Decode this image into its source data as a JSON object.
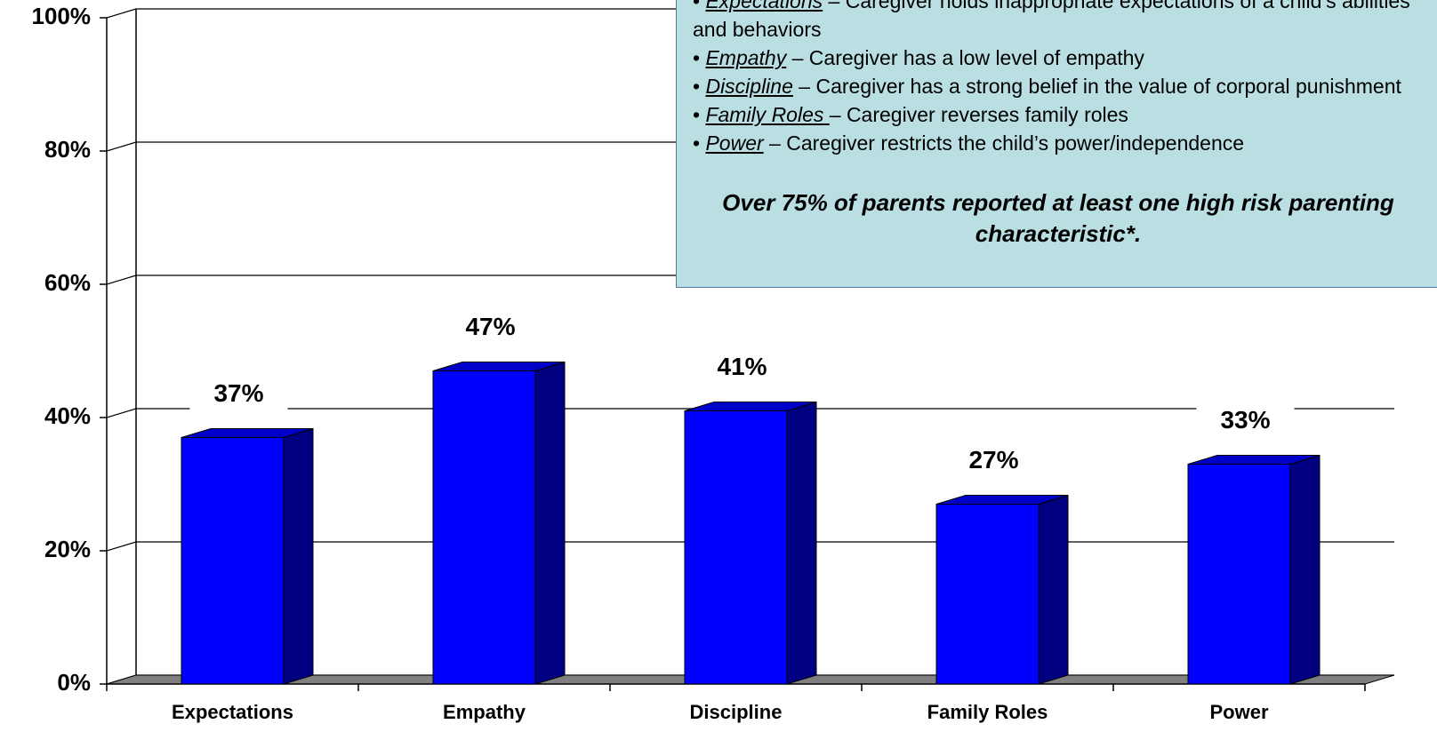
{
  "chart_data": {
    "type": "bar3d",
    "categories": [
      "Expectations",
      "Empathy",
      "Discipline",
      "Family Roles",
      "Power"
    ],
    "values": [
      37,
      47,
      41,
      27,
      33
    ],
    "value_labels": [
      "37%",
      "47%",
      "41%",
      "27%",
      "33%"
    ],
    "color": "#0000ff",
    "ylim": [
      0,
      100
    ],
    "yticks": [
      {
        "value": 0,
        "label": "0%"
      },
      {
        "value": 20,
        "label": "20%"
      },
      {
        "value": 40,
        "label": "40%"
      },
      {
        "value": 60,
        "label": "60%"
      },
      {
        "value": 80,
        "label": "80%"
      },
      {
        "value": 100,
        "label": "100%"
      }
    ],
    "grid": true,
    "annotation": {
      "bullets": [
        {
          "term": "Expectations",
          "text": " – Caregiver holds inappropriate expectations of a child’s abilities and behaviors"
        },
        {
          "term": "Empathy",
          "text": " – Caregiver has a low level of empathy"
        },
        {
          "term": "Discipline",
          "text": " – Caregiver has a strong belief in the  value of corporal punishment"
        },
        {
          "term": "Family Roles ",
          "text": "– Caregiver reverses family roles"
        },
        {
          "term": "Power",
          "text": " – Caregiver restricts the child’s power/independence"
        }
      ],
      "note": "Over 75% of parents reported at least one high risk parenting characteristic*."
    }
  }
}
